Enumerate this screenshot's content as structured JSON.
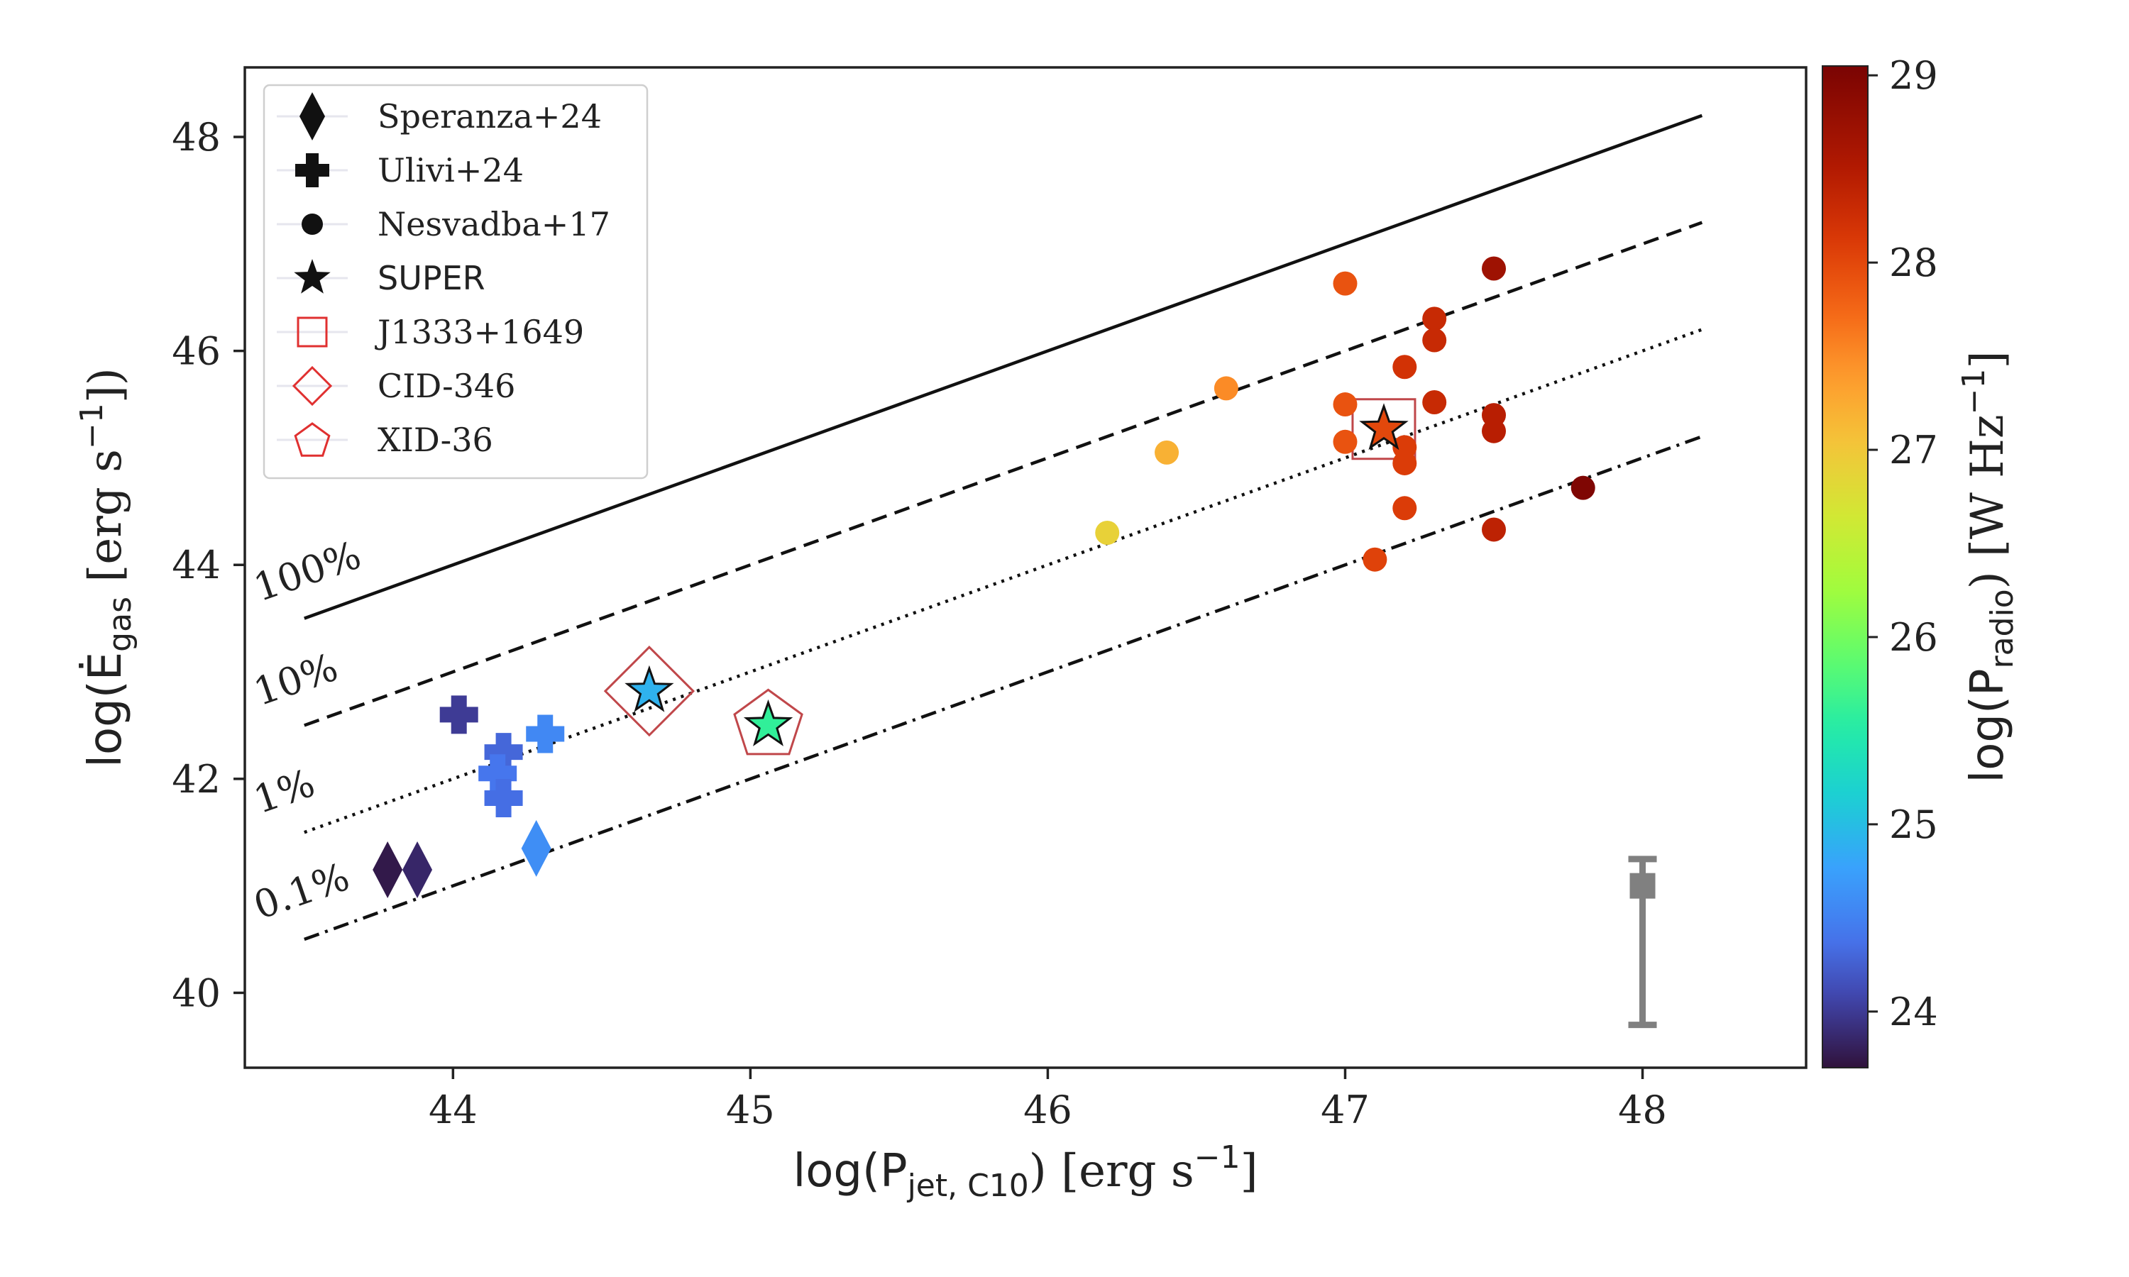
{
  "chart_data": {
    "type": "scatter",
    "title": "",
    "xlabel": {
      "main": "log(P",
      "sub": "jet, C10",
      "tail": ") [erg s",
      "sup": "−1",
      "end": "]"
    },
    "ylabel": {
      "main": "log(Ė",
      "sub": "gas",
      "tail": " [erg s",
      "sup": "−1",
      "end": "])"
    },
    "xlim": [
      43.3,
      48.55
    ],
    "ylim": [
      39.3,
      48.65
    ],
    "xticks": [
      44,
      45,
      46,
      47,
      48
    ],
    "yticks": [
      40,
      42,
      44,
      46,
      48
    ],
    "colorbar": {
      "label": {
        "main": "log(P",
        "sub": "radio",
        "tail": ") [W Hz",
        "sup": "−1",
        "end": "]"
      },
      "range": [
        23.7,
        29.05
      ],
      "ticks": [
        24,
        25,
        26,
        27,
        28,
        29
      ],
      "colormap": "turbo"
    },
    "reference_lines": [
      {
        "label": "100%",
        "style": "solid",
        "x": [
          43.5,
          48.2
        ],
        "y": [
          43.5,
          48.2
        ]
      },
      {
        "label": "10%",
        "style": "dashed",
        "x": [
          43.5,
          48.2
        ],
        "y": [
          42.5,
          47.2
        ]
      },
      {
        "label": "1%",
        "style": "dotted",
        "x": [
          43.5,
          48.2
        ],
        "y": [
          41.5,
          46.2
        ]
      },
      {
        "label": "0.1%",
        "style": "dashdot",
        "x": [
          43.5,
          48.2
        ],
        "y": [
          40.5,
          45.2
        ]
      }
    ],
    "series": [
      {
        "name": "Speranza+24",
        "marker": "diamond",
        "points": [
          {
            "x": 43.78,
            "y": 41.15,
            "c": 23.75
          },
          {
            "x": 43.88,
            "y": 41.15,
            "c": 23.85
          },
          {
            "x": 44.28,
            "y": 41.35,
            "c": 24.6
          }
        ]
      },
      {
        "name": "Ulivi+24",
        "marker": "plus",
        "points": [
          {
            "x": 44.02,
            "y": 42.6,
            "c": 24.0
          },
          {
            "x": 44.17,
            "y": 42.25,
            "c": 24.3
          },
          {
            "x": 44.15,
            "y": 42.05,
            "c": 24.4
          },
          {
            "x": 44.17,
            "y": 41.82,
            "c": 24.35
          },
          {
            "x": 44.31,
            "y": 42.42,
            "c": 24.55
          }
        ]
      },
      {
        "name": "Nesvadba+17",
        "marker": "circle",
        "points": [
          {
            "x": 46.2,
            "y": 44.3,
            "c": 26.9
          },
          {
            "x": 46.4,
            "y": 45.05,
            "c": 27.2
          },
          {
            "x": 46.6,
            "y": 45.65,
            "c": 27.5
          },
          {
            "x": 47.0,
            "y": 46.63,
            "c": 27.9
          },
          {
            "x": 47.0,
            "y": 45.5,
            "c": 27.9
          },
          {
            "x": 47.0,
            "y": 45.15,
            "c": 27.9
          },
          {
            "x": 47.1,
            "y": 44.05,
            "c": 28.05
          },
          {
            "x": 47.2,
            "y": 45.85,
            "c": 28.2
          },
          {
            "x": 47.2,
            "y": 45.1,
            "c": 28.1
          },
          {
            "x": 47.2,
            "y": 44.95,
            "c": 28.1
          },
          {
            "x": 47.2,
            "y": 44.53,
            "c": 28.1
          },
          {
            "x": 47.3,
            "y": 46.3,
            "c": 28.3
          },
          {
            "x": 47.3,
            "y": 46.1,
            "c": 28.3
          },
          {
            "x": 47.3,
            "y": 45.52,
            "c": 28.3
          },
          {
            "x": 47.5,
            "y": 46.77,
            "c": 28.7
          },
          {
            "x": 47.5,
            "y": 45.4,
            "c": 28.45
          },
          {
            "x": 47.5,
            "y": 45.25,
            "c": 28.45
          },
          {
            "x": 47.5,
            "y": 44.33,
            "c": 28.4
          },
          {
            "x": 47.8,
            "y": 44.72,
            "c": 29.0
          }
        ]
      },
      {
        "name": "SUPER",
        "marker": "star",
        "points": [
          {
            "x": 47.13,
            "y": 45.27,
            "c": 28.0
          },
          {
            "x": 44.66,
            "y": 42.82,
            "c": 24.9
          },
          {
            "x": 45.06,
            "y": 42.5,
            "c": 25.6
          }
        ]
      }
    ],
    "highlighted": [
      {
        "name": "J1333+1649",
        "marker": "square",
        "x": 47.13,
        "y": 45.27
      },
      {
        "name": "CID-346",
        "marker": "diamond",
        "x": 44.66,
        "y": 42.82
      },
      {
        "name": "XID-36",
        "marker": "pentagon",
        "x": 45.06,
        "y": 42.5
      }
    ],
    "typical_error": {
      "x": 48.0,
      "y": 41.0,
      "yerr_lower": 1.3,
      "yerr_upper": 0.25
    },
    "legend": {
      "placement": "top-left",
      "entries": [
        {
          "label": "Speranza+24",
          "symbol": "diamond"
        },
        {
          "label": "Ulivi+24",
          "symbol": "plus"
        },
        {
          "label": "Nesvadba+17",
          "symbol": "circle"
        },
        {
          "label": "SUPER",
          "symbol": "star"
        },
        {
          "label": "J1333+1649",
          "symbol": "open-square"
        },
        {
          "label": "CID-346",
          "symbol": "open-diamond"
        },
        {
          "label": "XID-36",
          "symbol": "open-pentagon"
        }
      ]
    }
  }
}
